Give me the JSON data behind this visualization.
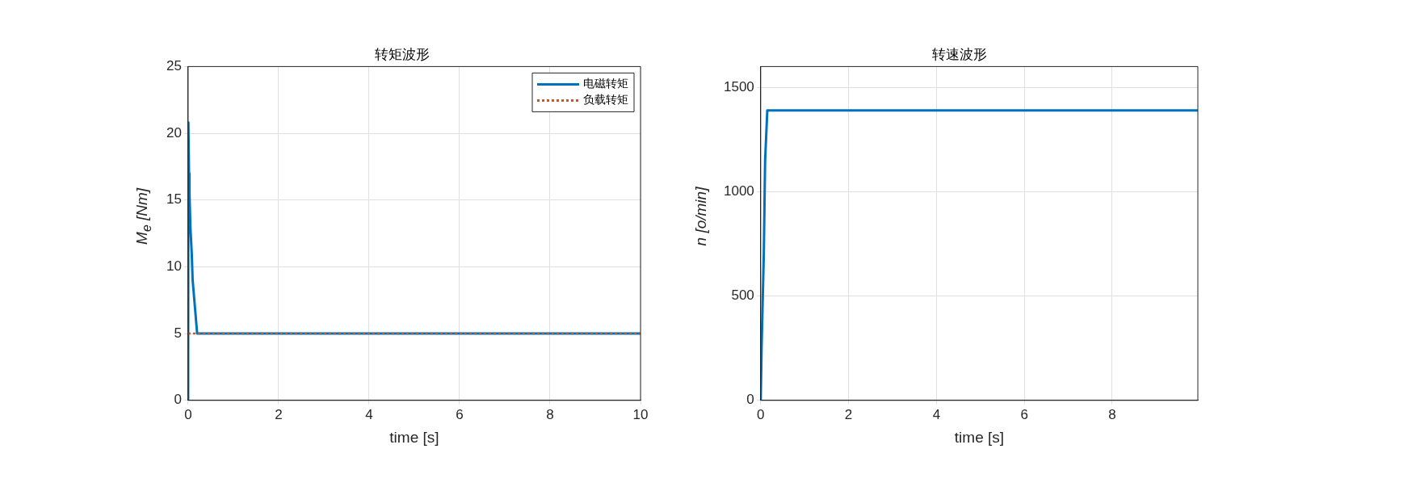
{
  "chart_data": [
    {
      "type": "line",
      "title": "转矩波形",
      "xlabel": "time [s]",
      "ylabel": "M$_{e}$ [Nm]",
      "xlim": [
        0,
        10
      ],
      "xticks": [
        0,
        2,
        4,
        6,
        8,
        10
      ],
      "ylim": [
        0,
        25
      ],
      "yticks": [
        0,
        5,
        10,
        15,
        20,
        25
      ],
      "grid": true,
      "legend": "top right",
      "series": [
        {
          "name": "电磁转矩",
          "color": "#0072bd",
          "line_style": "solid",
          "x": [
            0,
            0.005,
            0.02,
            0.03,
            0.05,
            0.08,
            0.1,
            0.2,
            10
          ],
          "values": [
            0,
            20.8,
            17,
            15.5,
            13,
            11,
            9,
            5,
            5
          ]
        },
        {
          "name": "负载转矩",
          "color": "#d95319",
          "line_style": "dotted",
          "x": [
            0,
            10
          ],
          "values": [
            5,
            5
          ]
        }
      ]
    },
    {
      "type": "line",
      "title": "转速波形",
      "xlabel": "time [s]",
      "ylabel": "n [o/min]",
      "xlim": [
        0,
        9.95
      ],
      "xticks": [
        0,
        2,
        4,
        6,
        8
      ],
      "ylim": [
        0,
        1600
      ],
      "yticks": [
        0,
        500,
        1000,
        1500
      ],
      "grid": true,
      "series": [
        {
          "color": "#0072bd",
          "line_style": "solid",
          "x": [
            0,
            0.02,
            0.07,
            0.1,
            0.15,
            9.95
          ],
          "values": [
            0,
            250,
            700,
            1150,
            1390,
            1390
          ]
        }
      ]
    }
  ]
}
